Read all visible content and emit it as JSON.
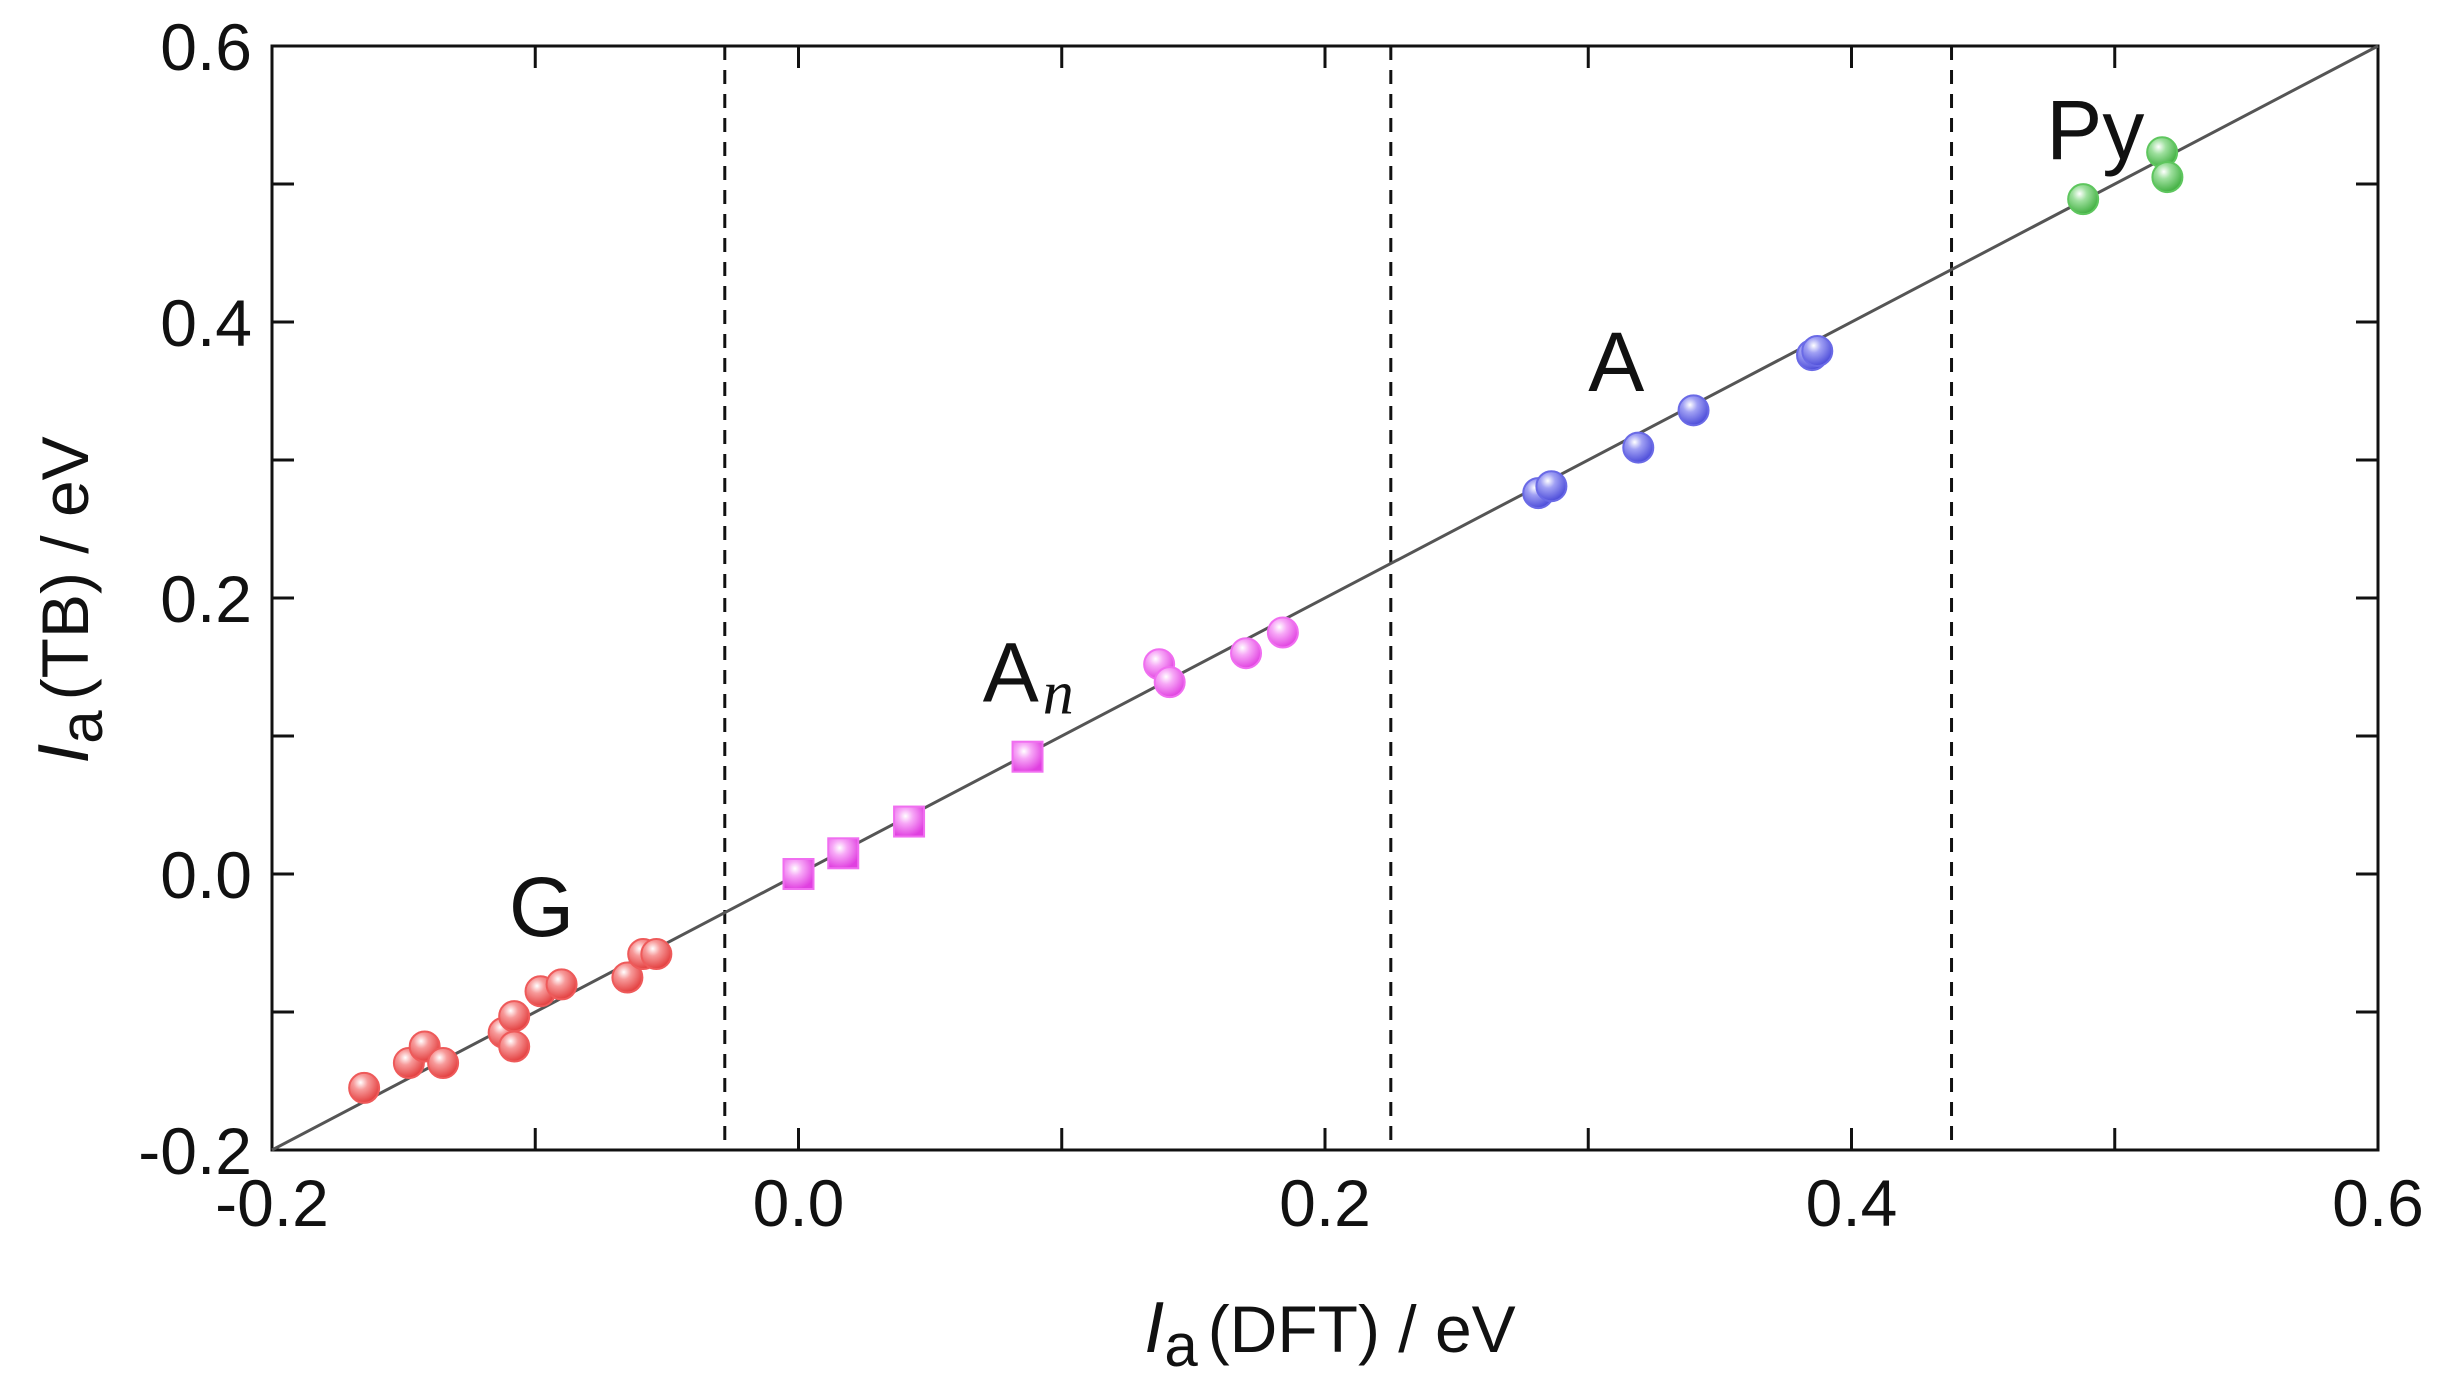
{
  "chart_data": {
    "type": "scatter",
    "xlabel": {
      "symbol": "I",
      "subscript": "a",
      "rest": "(DFT) / eV"
    },
    "ylabel": {
      "symbol": "I",
      "subscript": "a",
      "rest": "(TB) / eV"
    },
    "xlim": [
      -0.2,
      0.6
    ],
    "ylim": [
      -0.2,
      0.6
    ],
    "x_ticks": [
      "-0.2",
      "0.0",
      "0.2",
      "0.4",
      "0.6"
    ],
    "y_ticks": [
      "-0.2",
      "0.0",
      "0.2",
      "0.4",
      "0.6"
    ],
    "diagonal": [
      [
        -0.2,
        -0.2
      ],
      [
        0.6,
        0.6
      ]
    ],
    "vertical_dividers": [
      -0.028,
      0.225,
      0.438
    ],
    "group_labels": [
      {
        "name": "G",
        "sub": "",
        "x": -0.11,
        "y": -0.045
      },
      {
        "name": "A",
        "sub": "n",
        "x": 0.07,
        "y": 0.125
      },
      {
        "name": "A",
        "sub": "",
        "x": 0.3,
        "y": 0.35
      },
      {
        "name": "Py",
        "sub": "",
        "x": 0.474,
        "y": 0.518
      }
    ],
    "series": [
      {
        "name": "G",
        "marker": "circle",
        "color": "#ee5a5a",
        "points": [
          [
            -0.165,
            -0.155
          ],
          [
            -0.148,
            -0.137
          ],
          [
            -0.142,
            -0.125
          ],
          [
            -0.135,
            -0.137
          ],
          [
            -0.112,
            -0.115
          ],
          [
            -0.108,
            -0.103
          ],
          [
            -0.108,
            -0.125
          ],
          [
            -0.098,
            -0.085
          ],
          [
            -0.09,
            -0.08
          ],
          [
            -0.065,
            -0.075
          ],
          [
            -0.059,
            -0.058
          ],
          [
            -0.054,
            -0.058
          ]
        ]
      },
      {
        "name": "An (circles)",
        "marker": "circle",
        "color": "#f06ef0",
        "points": [
          [
            0.137,
            0.152
          ],
          [
            0.141,
            0.139
          ],
          [
            0.17,
            0.16
          ],
          [
            0.184,
            0.175
          ]
        ]
      },
      {
        "name": "An (squares)",
        "marker": "square",
        "color": "#f06ef0",
        "points": [
          [
            0.0,
            0.0
          ],
          [
            0.017,
            0.015
          ],
          [
            0.042,
            0.038
          ],
          [
            0.087,
            0.085
          ]
        ]
      },
      {
        "name": "A",
        "marker": "circle",
        "color": "#6a6ae6",
        "points": [
          [
            0.281,
            0.276
          ],
          [
            0.286,
            0.281
          ],
          [
            0.319,
            0.309
          ],
          [
            0.34,
            0.336
          ],
          [
            0.385,
            0.376
          ],
          [
            0.387,
            0.379
          ]
        ]
      },
      {
        "name": "Py",
        "marker": "circle",
        "color": "#5ec65e",
        "points": [
          [
            0.488,
            0.489
          ],
          [
            0.518,
            0.523
          ],
          [
            0.52,
            0.505
          ]
        ]
      }
    ]
  }
}
